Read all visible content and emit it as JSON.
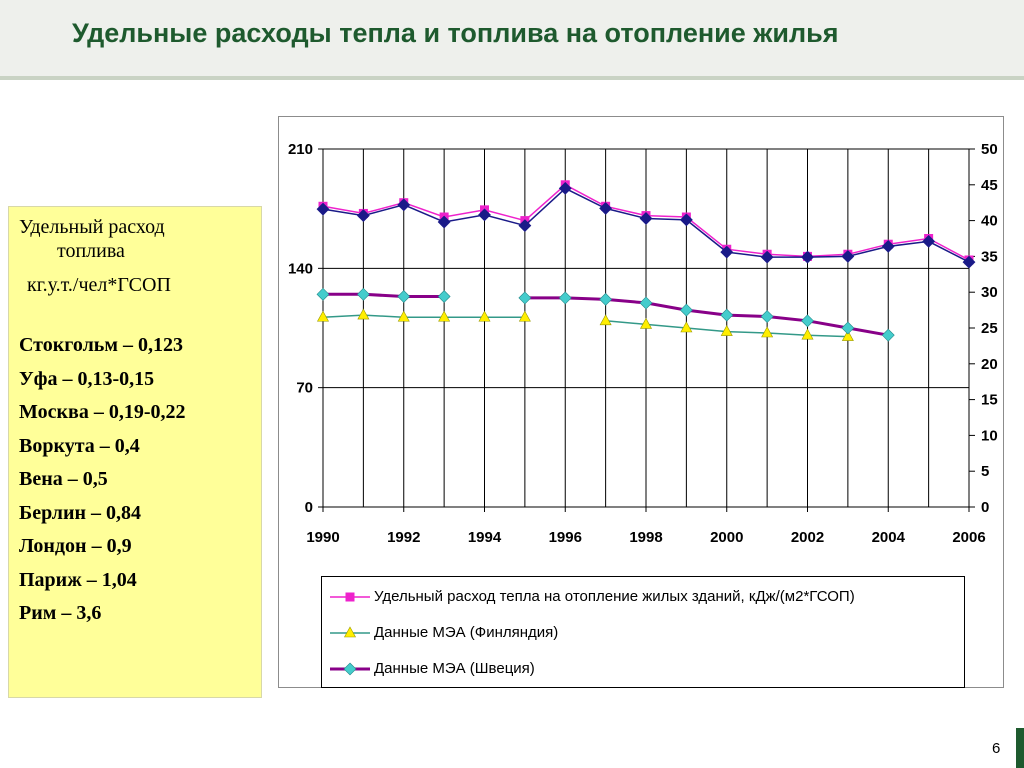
{
  "slide": {
    "title": "Удельные расходы тепла и топлива на отопление жилья",
    "page_number": "6"
  },
  "note": {
    "heading_line1": "Удельный расход",
    "heading_line2": "топлива",
    "unit": "кг.у.т./чел*ГСОП",
    "cities": [
      "Стокгольм – 0,123",
      "Уфа – 0,13-0,15",
      "Москва – 0,19-0,22",
      "Воркута – 0,4",
      "Вена – 0,5",
      "Берлин – 0,84",
      "Лондон – 0,9",
      "Париж – 1,04",
      "Рим – 3,6"
    ],
    "background_color": "#ffff99"
  },
  "chart_data": {
    "type": "line",
    "x": [
      1990,
      1991,
      1992,
      1993,
      1994,
      1995,
      1996,
      1997,
      1998,
      1999,
      2000,
      2001,
      2002,
      2003,
      2004,
      2005,
      2006
    ],
    "x_tick_labels": [
      "1990",
      "1992",
      "1994",
      "1996",
      "1998",
      "2000",
      "2002",
      "2004",
      "2006"
    ],
    "y_left": {
      "ticks": [
        "0",
        "70",
        "140",
        "210"
      ],
      "ylim": [
        0,
        210
      ]
    },
    "y_right": {
      "ticks": [
        "0",
        "5",
        "10",
        "15",
        "20",
        "25",
        "30",
        "35",
        "40",
        "45",
        "50"
      ],
      "ylim": [
        0,
        50
      ]
    },
    "grid": {
      "vertical": true,
      "horizontal_at_left_ticks": true
    },
    "legend_position": "bottom",
    "series": [
      {
        "name": "Удельный расход тепла на отопление жилых зданий, кДж/(м2*ГСОП)",
        "axis": "right",
        "color": "#ee22cc",
        "marker": "square",
        "values": [
          42,
          41,
          42.5,
          40.5,
          41.5,
          40,
          45,
          42,
          40.7,
          40.5,
          36,
          35.3,
          35,
          35.3,
          36.7,
          37.5,
          34.5
        ]
      },
      {
        "name": "",
        "axis": "right",
        "color": "#1a1a88",
        "marker": "diamond",
        "values": [
          41.6,
          40.7,
          42.2,
          39.8,
          40.8,
          39.3,
          44.5,
          41.7,
          40.3,
          40.1,
          35.6,
          34.9,
          34.9,
          35,
          36.4,
          37.1,
          34.2
        ]
      },
      {
        "name": "Данные МЭА (Финляндия)",
        "axis": "right",
        "color": "#339988",
        "marker_color": "#ffee00",
        "marker": "triangle",
        "values": [
          26.5,
          26.8,
          26.5,
          26.5,
          26.5,
          26.5,
          null,
          26,
          25.5,
          25,
          24.5,
          24.3,
          24,
          23.8,
          null,
          null,
          null
        ]
      },
      {
        "name": "Данные МЭА (Швеция)",
        "axis": "right",
        "color": "#880088",
        "marker_color": "#44cccc",
        "marker": "diamond",
        "values": [
          29.7,
          29.7,
          29.4,
          29.4,
          null,
          29.2,
          29.2,
          29,
          28.5,
          27.5,
          26.8,
          26.6,
          26,
          25,
          24,
          null,
          null
        ]
      }
    ]
  }
}
